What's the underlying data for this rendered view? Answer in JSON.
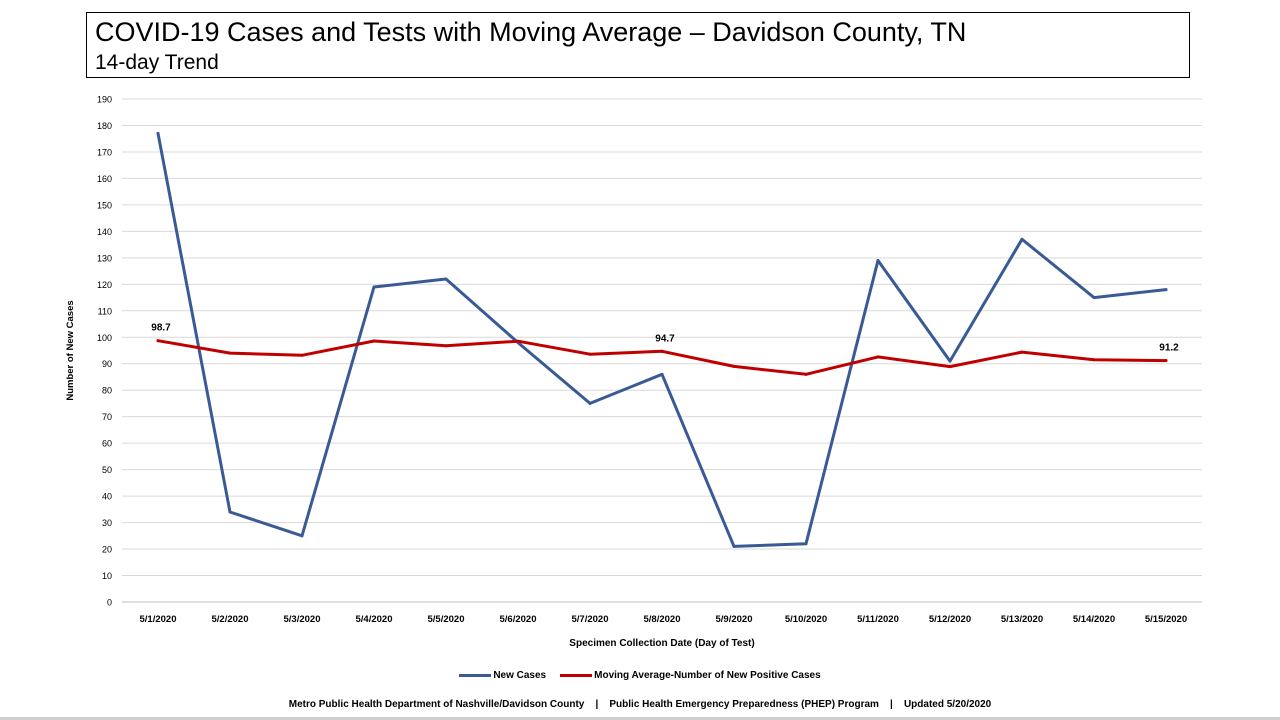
{
  "header": {
    "title": "COVID-19 Cases and Tests with Moving Average – Davidson County, TN",
    "subtitle": "14-day Trend"
  },
  "chart_data": {
    "type": "line",
    "xlabel": "Specimen Collection Date (Day of Test)",
    "ylabel": "Number of New Cases",
    "ylim": [
      0,
      190
    ],
    "ytick_step": 10,
    "grid": true,
    "legend_position": "bottom",
    "categories": [
      "5/1/2020",
      "5/2/2020",
      "5/3/2020",
      "5/4/2020",
      "5/5/2020",
      "5/6/2020",
      "5/7/2020",
      "5/8/2020",
      "5/9/2020",
      "5/10/2020",
      "5/11/2020",
      "5/12/2020",
      "5/13/2020",
      "5/14/2020",
      "5/15/2020"
    ],
    "series": [
      {
        "name": "New Cases",
        "color": "#3a5a96",
        "values": [
          177,
          34,
          25,
          119,
          122,
          98,
          75,
          86,
          21,
          22,
          129,
          91,
          137,
          115,
          118
        ]
      },
      {
        "name": "Moving Average-Number of New Positive Cases",
        "color": "#c00000",
        "values": [
          98.7,
          94,
          93.2,
          98.6,
          96.8,
          98.5,
          93.6,
          94.7,
          89,
          86,
          92.6,
          88.9,
          94.4,
          91.5,
          91.2
        ]
      }
    ],
    "annotations": [
      {
        "series": 1,
        "index": 0,
        "text": "98.7"
      },
      {
        "series": 1,
        "index": 7,
        "text": "94.7"
      },
      {
        "series": 1,
        "index": 14,
        "text": "91.2"
      }
    ]
  },
  "footer": {
    "text": "Metro Public Health Department of Nashville/Davidson County    |    Public Health Emergency Preparedness (PHEP) Program    |    Updated 5/20/2020"
  }
}
